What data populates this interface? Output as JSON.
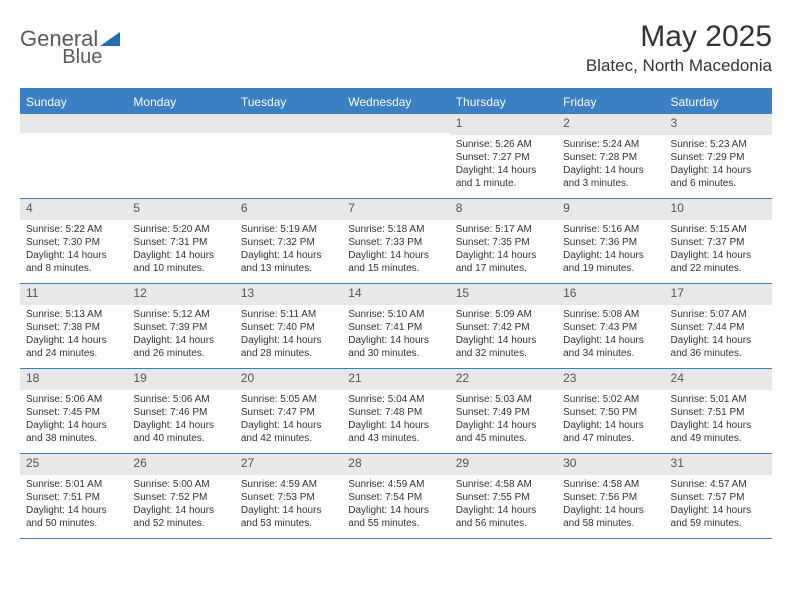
{
  "logo": {
    "text1": "General",
    "text2": "Blue"
  },
  "title": "May 2025",
  "location": "Blatec, North Macedonia",
  "colors": {
    "header_bg": "#3b7fc4",
    "header_text": "#ffffff",
    "daynum_bg": "#e8e8e8",
    "border": "#3b7fc4",
    "text": "#333333"
  },
  "daynames": [
    "Sunday",
    "Monday",
    "Tuesday",
    "Wednesday",
    "Thursday",
    "Friday",
    "Saturday"
  ],
  "weeks": [
    [
      null,
      null,
      null,
      null,
      {
        "n": "1",
        "sr": "5:26 AM",
        "ss": "7:27 PM",
        "dl": "14 hours and 1 minute."
      },
      {
        "n": "2",
        "sr": "5:24 AM",
        "ss": "7:28 PM",
        "dl": "14 hours and 3 minutes."
      },
      {
        "n": "3",
        "sr": "5:23 AM",
        "ss": "7:29 PM",
        "dl": "14 hours and 6 minutes."
      }
    ],
    [
      {
        "n": "4",
        "sr": "5:22 AM",
        "ss": "7:30 PM",
        "dl": "14 hours and 8 minutes."
      },
      {
        "n": "5",
        "sr": "5:20 AM",
        "ss": "7:31 PM",
        "dl": "14 hours and 10 minutes."
      },
      {
        "n": "6",
        "sr": "5:19 AM",
        "ss": "7:32 PM",
        "dl": "14 hours and 13 minutes."
      },
      {
        "n": "7",
        "sr": "5:18 AM",
        "ss": "7:33 PM",
        "dl": "14 hours and 15 minutes."
      },
      {
        "n": "8",
        "sr": "5:17 AM",
        "ss": "7:35 PM",
        "dl": "14 hours and 17 minutes."
      },
      {
        "n": "9",
        "sr": "5:16 AM",
        "ss": "7:36 PM",
        "dl": "14 hours and 19 minutes."
      },
      {
        "n": "10",
        "sr": "5:15 AM",
        "ss": "7:37 PM",
        "dl": "14 hours and 22 minutes."
      }
    ],
    [
      {
        "n": "11",
        "sr": "5:13 AM",
        "ss": "7:38 PM",
        "dl": "14 hours and 24 minutes."
      },
      {
        "n": "12",
        "sr": "5:12 AM",
        "ss": "7:39 PM",
        "dl": "14 hours and 26 minutes."
      },
      {
        "n": "13",
        "sr": "5:11 AM",
        "ss": "7:40 PM",
        "dl": "14 hours and 28 minutes."
      },
      {
        "n": "14",
        "sr": "5:10 AM",
        "ss": "7:41 PM",
        "dl": "14 hours and 30 minutes."
      },
      {
        "n": "15",
        "sr": "5:09 AM",
        "ss": "7:42 PM",
        "dl": "14 hours and 32 minutes."
      },
      {
        "n": "16",
        "sr": "5:08 AM",
        "ss": "7:43 PM",
        "dl": "14 hours and 34 minutes."
      },
      {
        "n": "17",
        "sr": "5:07 AM",
        "ss": "7:44 PM",
        "dl": "14 hours and 36 minutes."
      }
    ],
    [
      {
        "n": "18",
        "sr": "5:06 AM",
        "ss": "7:45 PM",
        "dl": "14 hours and 38 minutes."
      },
      {
        "n": "19",
        "sr": "5:06 AM",
        "ss": "7:46 PM",
        "dl": "14 hours and 40 minutes."
      },
      {
        "n": "20",
        "sr": "5:05 AM",
        "ss": "7:47 PM",
        "dl": "14 hours and 42 minutes."
      },
      {
        "n": "21",
        "sr": "5:04 AM",
        "ss": "7:48 PM",
        "dl": "14 hours and 43 minutes."
      },
      {
        "n": "22",
        "sr": "5:03 AM",
        "ss": "7:49 PM",
        "dl": "14 hours and 45 minutes."
      },
      {
        "n": "23",
        "sr": "5:02 AM",
        "ss": "7:50 PM",
        "dl": "14 hours and 47 minutes."
      },
      {
        "n": "24",
        "sr": "5:01 AM",
        "ss": "7:51 PM",
        "dl": "14 hours and 49 minutes."
      }
    ],
    [
      {
        "n": "25",
        "sr": "5:01 AM",
        "ss": "7:51 PM",
        "dl": "14 hours and 50 minutes."
      },
      {
        "n": "26",
        "sr": "5:00 AM",
        "ss": "7:52 PM",
        "dl": "14 hours and 52 minutes."
      },
      {
        "n": "27",
        "sr": "4:59 AM",
        "ss": "7:53 PM",
        "dl": "14 hours and 53 minutes."
      },
      {
        "n": "28",
        "sr": "4:59 AM",
        "ss": "7:54 PM",
        "dl": "14 hours and 55 minutes."
      },
      {
        "n": "29",
        "sr": "4:58 AM",
        "ss": "7:55 PM",
        "dl": "14 hours and 56 minutes."
      },
      {
        "n": "30",
        "sr": "4:58 AM",
        "ss": "7:56 PM",
        "dl": "14 hours and 58 minutes."
      },
      {
        "n": "31",
        "sr": "4:57 AM",
        "ss": "7:57 PM",
        "dl": "14 hours and 59 minutes."
      }
    ]
  ],
  "labels": {
    "sunrise": "Sunrise: ",
    "sunset": "Sunset: ",
    "daylight": "Daylight: "
  }
}
